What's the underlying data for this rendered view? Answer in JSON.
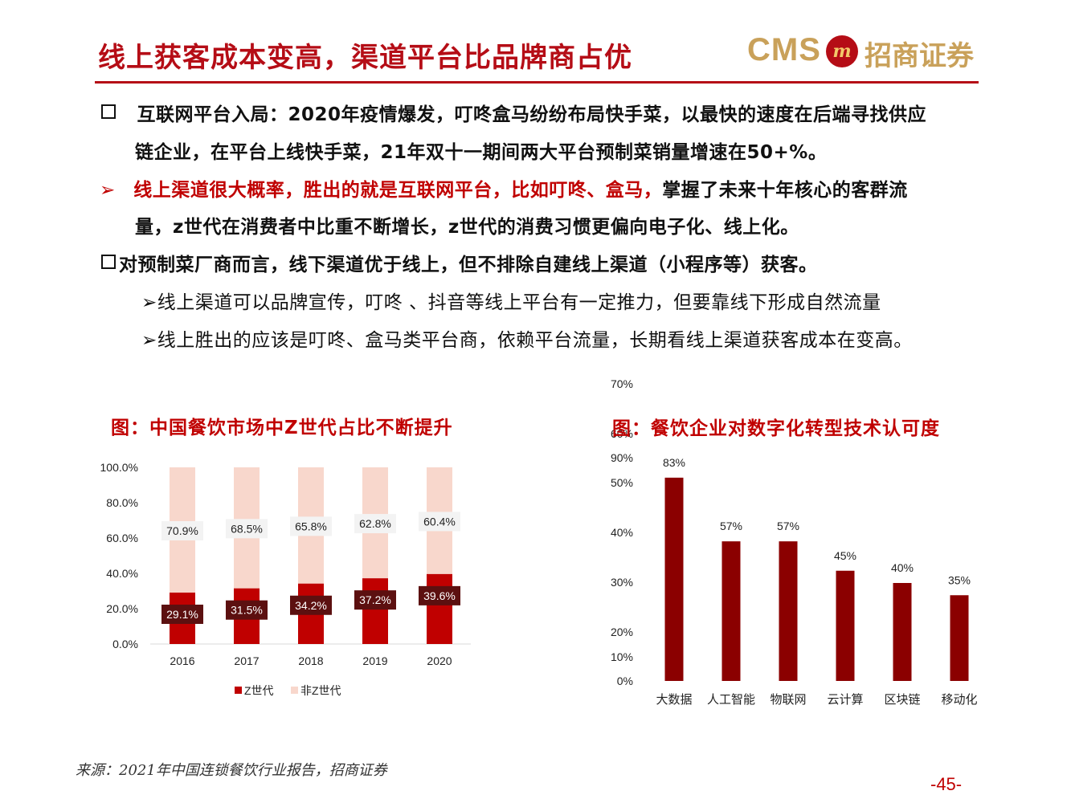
{
  "header": {
    "title": "线上获客成本变高，渠道平台比品牌商占优",
    "logo_cms": "CMS",
    "logo_cn": "招商证券",
    "accent": "#b50d16"
  },
  "bullets": {
    "b1_line1": "互联网平台入局：2020年疫情爆发，叮咚盒马纷纷布局快手菜，以最快的速度在后端寻找供应",
    "b1_line2": "链企业，在平台上线快手菜，21年双十一期间两大平台预制菜销量增速在50+%。",
    "b2_marker": "➢",
    "b2_line1_red": "线上渠道很大概率，胜出的就是互联网平台，比如叮咚、盒马，",
    "b2_line1_black": "掌握了未来十年核心的客群流",
    "b2_line2": "量，z世代在消费者中比重不断增长，z世代的消费习惯更偏向电子化、线上化。",
    "b3": "对预制菜厂商而言，线下渠道优于线上，但不排除自建线上渠道（小程序等）获客。",
    "sub_marker": "➢",
    "s1": "线上渠道可以品牌宣传，叮咚 、抖音等线上平台有一定推力，但要靠线下形成自然流量",
    "s2": "线上胜出的应该是叮咚、盒马类平台商，依赖平台流量，长期看线上渠道获客成本在变高。"
  },
  "chart_data": [
    {
      "type": "bar",
      "stacked": true,
      "title": "图：中国餐饮市场中Z世代占比不断提升",
      "categories": [
        "2016",
        "2017",
        "2018",
        "2019",
        "2020"
      ],
      "series": [
        {
          "name": "Z世代",
          "values": [
            29.1,
            31.5,
            34.2,
            37.2,
            39.6
          ],
          "labels": [
            "29.1%",
            "31.5%",
            "34.2%",
            "37.2%",
            "39.6%"
          ],
          "color": "#c00000"
        },
        {
          "name": "非Z世代",
          "values": [
            70.9,
            68.5,
            65.8,
            62.8,
            60.4
          ],
          "labels": [
            "70.9%",
            "68.5%",
            "65.8%",
            "62.8%",
            "60.4%"
          ],
          "color": "#f8d7cc"
        }
      ],
      "yticks": [
        "0.0%",
        "20.0%",
        "40.0%",
        "60.0%",
        "80.0%",
        "100.0%"
      ],
      "ylim": [
        0,
        100
      ],
      "grid": false,
      "legend": "bottom"
    },
    {
      "type": "bar",
      "title": "图：餐饮企业对数字化转型技术认可度",
      "categories": [
        "大数据",
        "人工智能",
        "物联网",
        "云计算",
        "区块链",
        "移动化"
      ],
      "values": [
        83,
        57,
        57,
        45,
        40,
        35
      ],
      "labels": [
        "83%",
        "57%",
        "57%",
        "45%",
        "40%",
        "35%"
      ],
      "color": "#8b0000",
      "yticks": [
        "0%",
        "10%",
        "20%",
        "30%",
        "40%",
        "50%",
        "60%",
        "70%",
        "90%"
      ],
      "ylim": [
        0,
        90
      ],
      "grid": false,
      "legend": "none"
    }
  ],
  "footer": {
    "source": "来源：2021年中国连锁餐饮行业报告，招商证券",
    "page": "-45-"
  }
}
